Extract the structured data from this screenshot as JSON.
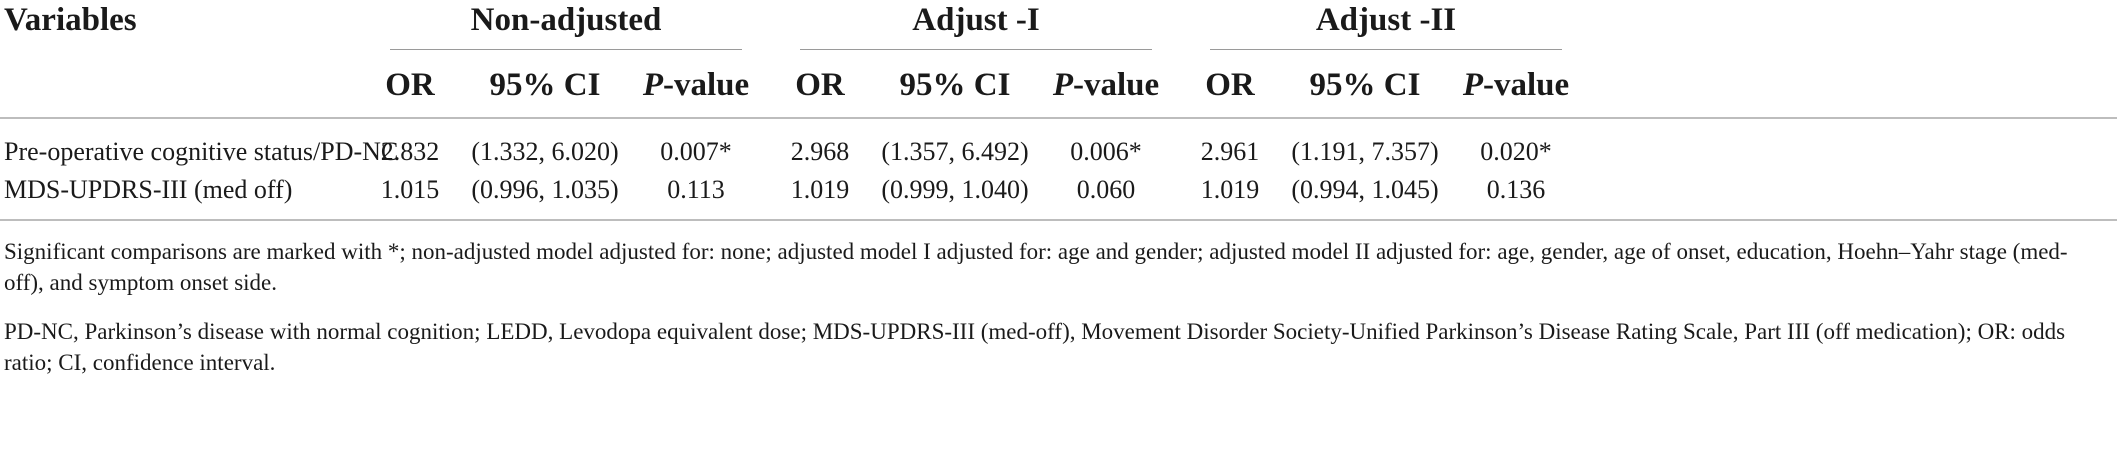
{
  "table": {
    "header": {
      "variables": "Variables",
      "groups": [
        "Non-adjusted",
        "Adjust -I",
        "Adjust -II"
      ],
      "columns": [
        "OR",
        "95% CI",
        "P",
        "-value"
      ]
    },
    "rows": [
      {
        "label": "Pre-operative cognitive status/PD-NC",
        "cells": [
          "2.832",
          "(1.332, 6.020)",
          "0.007*",
          "2.968",
          "(1.357, 6.492)",
          "0.006*",
          "2.961",
          "(1.191, 7.357)",
          "0.020*"
        ]
      },
      {
        "label": "MDS-UPDRS-III (med off)",
        "cells": [
          "1.015",
          "(0.996, 1.035)",
          "0.113",
          "1.019",
          "(0.999, 1.040)",
          "0.060",
          "1.019",
          "(0.994, 1.045)",
          "0.136"
        ]
      }
    ]
  },
  "footnotes": [
    "Significant comparisons are marked with *; non-adjusted model adjusted for: none; adjusted model I adjusted for: age and gender; adjusted model II adjusted for: age, gender, age of onset, education, Hoehn–Yahr stage (med-off), and symptom onset side.",
    "PD-NC, Parkinson’s disease with normal cognition; LEDD, Levodopa equivalent dose; MDS-UPDRS-III (med-off), Movement Disorder Society-Unified Parkinson’s Disease Rating Scale, Part III (off medication); OR: odds ratio; CI, confidence interval."
  ]
}
